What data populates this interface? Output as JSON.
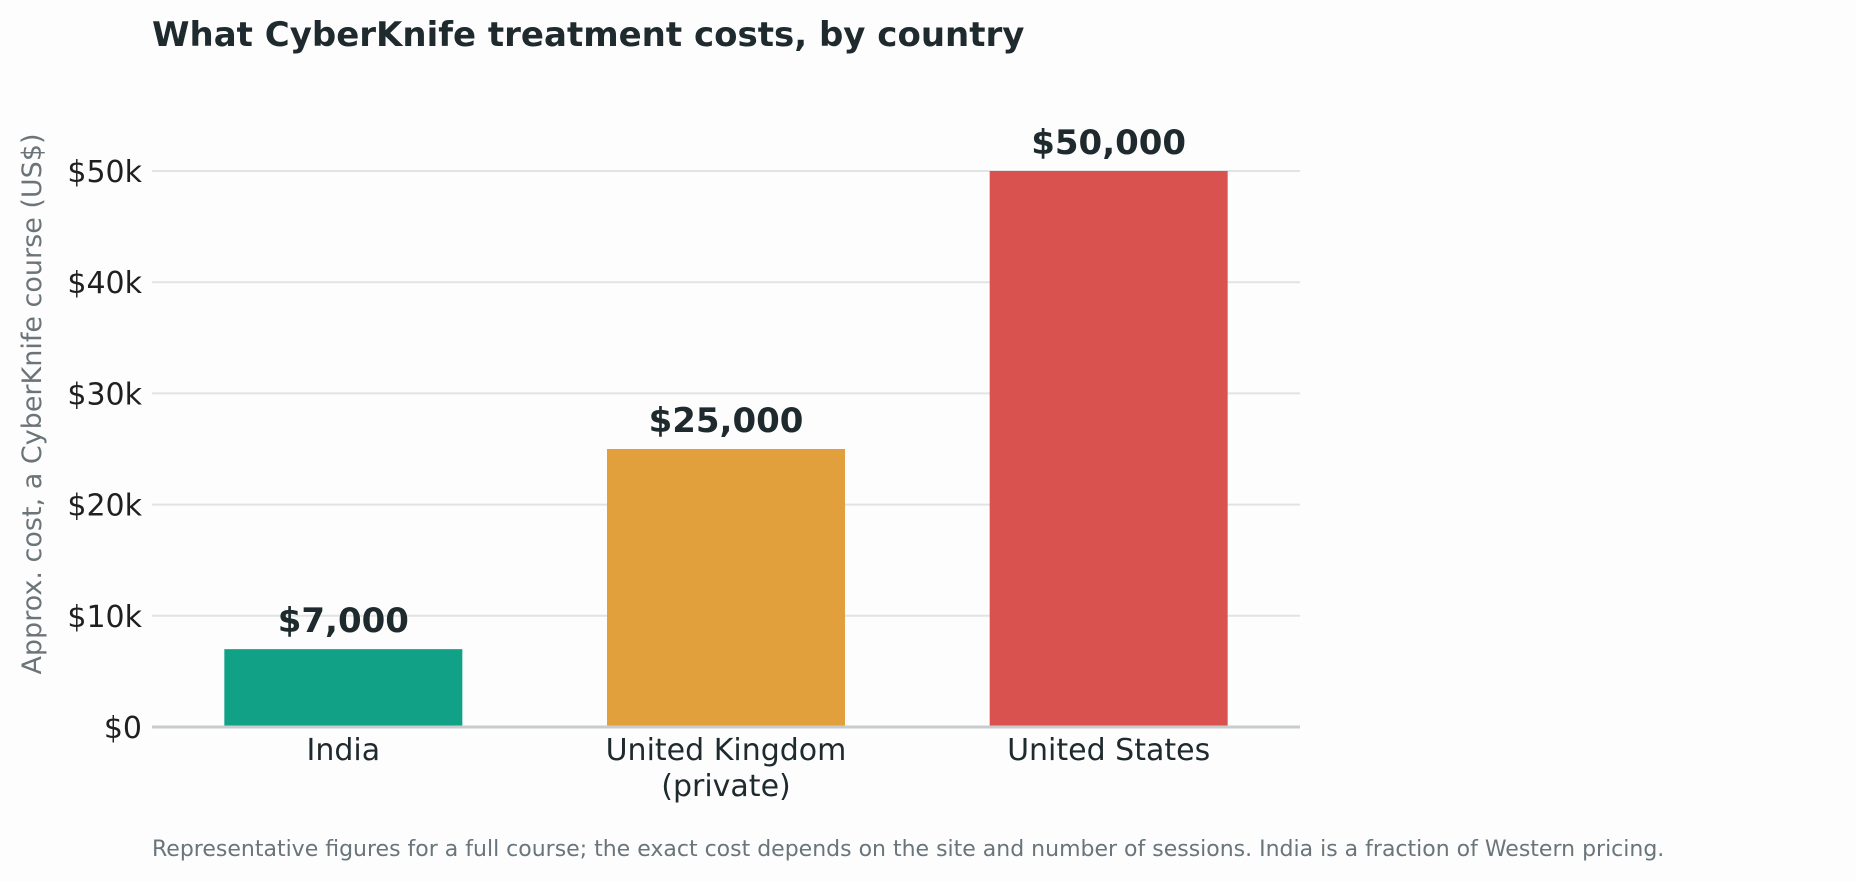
{
  "chart_data": {
    "type": "bar",
    "title": "What CyberKnife treatment costs, by country",
    "xlabel": "",
    "ylabel": "Approx. cost, a CyberKnife course (US$)",
    "categories": [
      [
        "India"
      ],
      [
        "United Kingdom",
        "(private)"
      ],
      [
        "United States"
      ]
    ],
    "values": [
      7000,
      25000,
      50000
    ],
    "value_labels": [
      "$7,000",
      "$25,000",
      "$50,000"
    ],
    "bar_colors": [
      "#10a187",
      "#e1a03b",
      "#da524f"
    ],
    "ylim": [
      0,
      55000
    ],
    "yticks": [
      0,
      10000,
      20000,
      30000,
      40000,
      50000
    ],
    "ytick_labels": [
      "$0",
      "$10k",
      "$20k",
      "$30k",
      "$40k",
      "$50k"
    ],
    "grid": true,
    "legend": "none",
    "footnote": "Representative figures for a full course; the exact cost depends on the site and number of sessions. India is a fraction of Western pricing."
  }
}
